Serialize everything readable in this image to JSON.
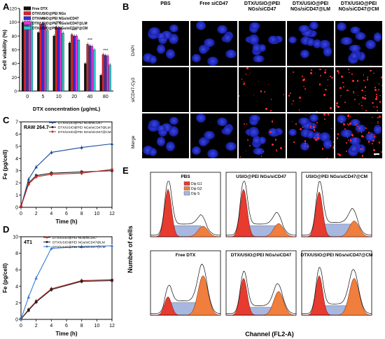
{
  "panels": {
    "a": "A",
    "b": "B",
    "c": "C",
    "d": "D",
    "e": "E"
  },
  "chart_data": [
    {
      "panel": "A",
      "type": "bar",
      "ylabel": "Cell viability (%)",
      "xlabel": "DTX concentration (μg/mL)",
      "ylim": [
        0,
        120
      ],
      "yticks": [
        "0",
        "20",
        "40",
        "60",
        "80",
        "100",
        "120"
      ],
      "categories": [
        "0",
        "5",
        "10",
        "20",
        "40",
        "80"
      ],
      "series": [
        {
          "name": "Free DTX",
          "color": "#111111",
          "values": [
            100,
            85,
            80,
            70,
            40,
            23
          ]
        },
        {
          "name": "DTX/USIO@PEI NGs",
          "color": "#e0202a",
          "values": [
            100,
            97,
            93,
            82,
            68,
            53
          ]
        },
        {
          "name": "DTX/USIO@PEI NGs/siCD47",
          "color": "#3a2bd6",
          "values": [
            100,
            98,
            92,
            80,
            66,
            52
          ]
        },
        {
          "name": "DTX/USIO@PEI NGs/siCD47@LM",
          "color": "#e233d8",
          "values": [
            100,
            96,
            91,
            80,
            65,
            51
          ]
        },
        {
          "name": "DTX/USIO@PEI NGs/siCD47@CM",
          "color": "#27c9c9",
          "values": [
            100,
            88,
            84,
            74,
            60,
            38
          ]
        }
      ],
      "annotations": [
        "***",
        "***",
        "***",
        "***",
        "***"
      ]
    },
    {
      "panel": "C",
      "type": "line",
      "title": "RAW 264.7",
      "xlabel": "Time (h)",
      "ylabel": "Fe (pg/cell)",
      "xlim": [
        0,
        12
      ],
      "ylim": [
        0,
        7
      ],
      "xticks": [
        "0",
        "2",
        "4",
        "6",
        "8",
        "10",
        "12"
      ],
      "yticks": [
        "0",
        "1",
        "2",
        "3",
        "4",
        "5",
        "6",
        "7"
      ],
      "x": [
        0,
        1,
        2,
        4,
        8,
        12
      ],
      "series": [
        {
          "name": "DTX/USIO@PEI NGs/siCD47",
          "color": "#1b4a9e",
          "values": [
            0.05,
            2.3,
            3.3,
            4.5,
            4.9,
            5.2
          ]
        },
        {
          "name": "DTX/USIO@PEI NGs/siCD47@LM",
          "color": "#222222",
          "values": [
            0.05,
            2.0,
            2.6,
            2.8,
            2.9,
            3.0
          ]
        },
        {
          "name": "DTX/USIO@PEI NGs/siCD47@CM",
          "color": "#c42a2a",
          "values": [
            0.05,
            1.9,
            2.5,
            2.7,
            2.8,
            3.1
          ]
        }
      ]
    },
    {
      "panel": "D",
      "type": "line",
      "title": "4T1",
      "xlabel": "Time (h)",
      "ylabel": "Fe (pg/cell)",
      "xlim": [
        0,
        12
      ],
      "ylim": [
        0,
        10
      ],
      "xticks": [
        "0",
        "2",
        "4",
        "6",
        "8",
        "10",
        "12"
      ],
      "yticks": [
        "0",
        "2",
        "4",
        "6",
        "8",
        "10"
      ],
      "x": [
        0,
        1,
        2,
        4,
        8,
        12
      ],
      "series": [
        {
          "name": "DTX/USIO@PEI NGs/siCD47",
          "color": "#c42a2a",
          "values": [
            0.05,
            1.2,
            2.2,
            3.7,
            4.7,
            4.8
          ]
        },
        {
          "name": "DTX/USIO@PEI NGs/siCD47@LM",
          "color": "#222222",
          "values": [
            0.05,
            1.1,
            2.1,
            3.6,
            4.6,
            4.7
          ]
        },
        {
          "name": "DTX/USIO@PEI NGs/siCD47@CM",
          "color": "#3a7ad6",
          "values": [
            0.05,
            2.7,
            5.0,
            8.6,
            8.8,
            8.9
          ]
        }
      ]
    },
    {
      "panel": "E",
      "type": "area",
      "xlabel": "Channel (FL2-A)",
      "ylabel": "Number of cells",
      "legend": [
        {
          "name": "Dip G1",
          "color": "#e63b2e"
        },
        {
          "name": "Dip G2",
          "color": "#f07e3c"
        },
        {
          "name": "Dip S",
          "color": "#a7b7e0"
        }
      ],
      "histograms": [
        {
          "title": "PBS",
          "g1": 0.9,
          "s": 0.35,
          "g2": 0.2
        },
        {
          "title": "USIO@PEI NGs/siCD47",
          "g1": 0.9,
          "s": 0.35,
          "g2": 0.25
        },
        {
          "title": "USIO@PEI NGs/siCD47@CM",
          "g1": 0.85,
          "s": 0.4,
          "g2": 0.3
        },
        {
          "title": "Free DTX",
          "g1": 0.35,
          "s": 0.4,
          "g2": 0.75
        },
        {
          "title": "DTX/USIO@PEI NGs/siCD47",
          "g1": 0.7,
          "s": 0.25,
          "g2": 0.45
        },
        {
          "title": "DTX/USIO@PEI NGs/siCD47@CM",
          "g1": 0.75,
          "s": 0.3,
          "g2": 0.7
        }
      ]
    }
  ],
  "micrograph": {
    "columns": [
      "PBS",
      "Free siCD47",
      "DTX/USIO@PEI NGs/siCD47",
      "DTX/USIO@PEI NGs/siCD47@LM",
      "DTX/USIO@PEI NGs/siCD47@CM"
    ],
    "rows": [
      "DAPI",
      "siCD47-Cy3",
      "Merge"
    ],
    "red_intensity": [
      0,
      0,
      0.3,
      0.5,
      1.0
    ]
  }
}
